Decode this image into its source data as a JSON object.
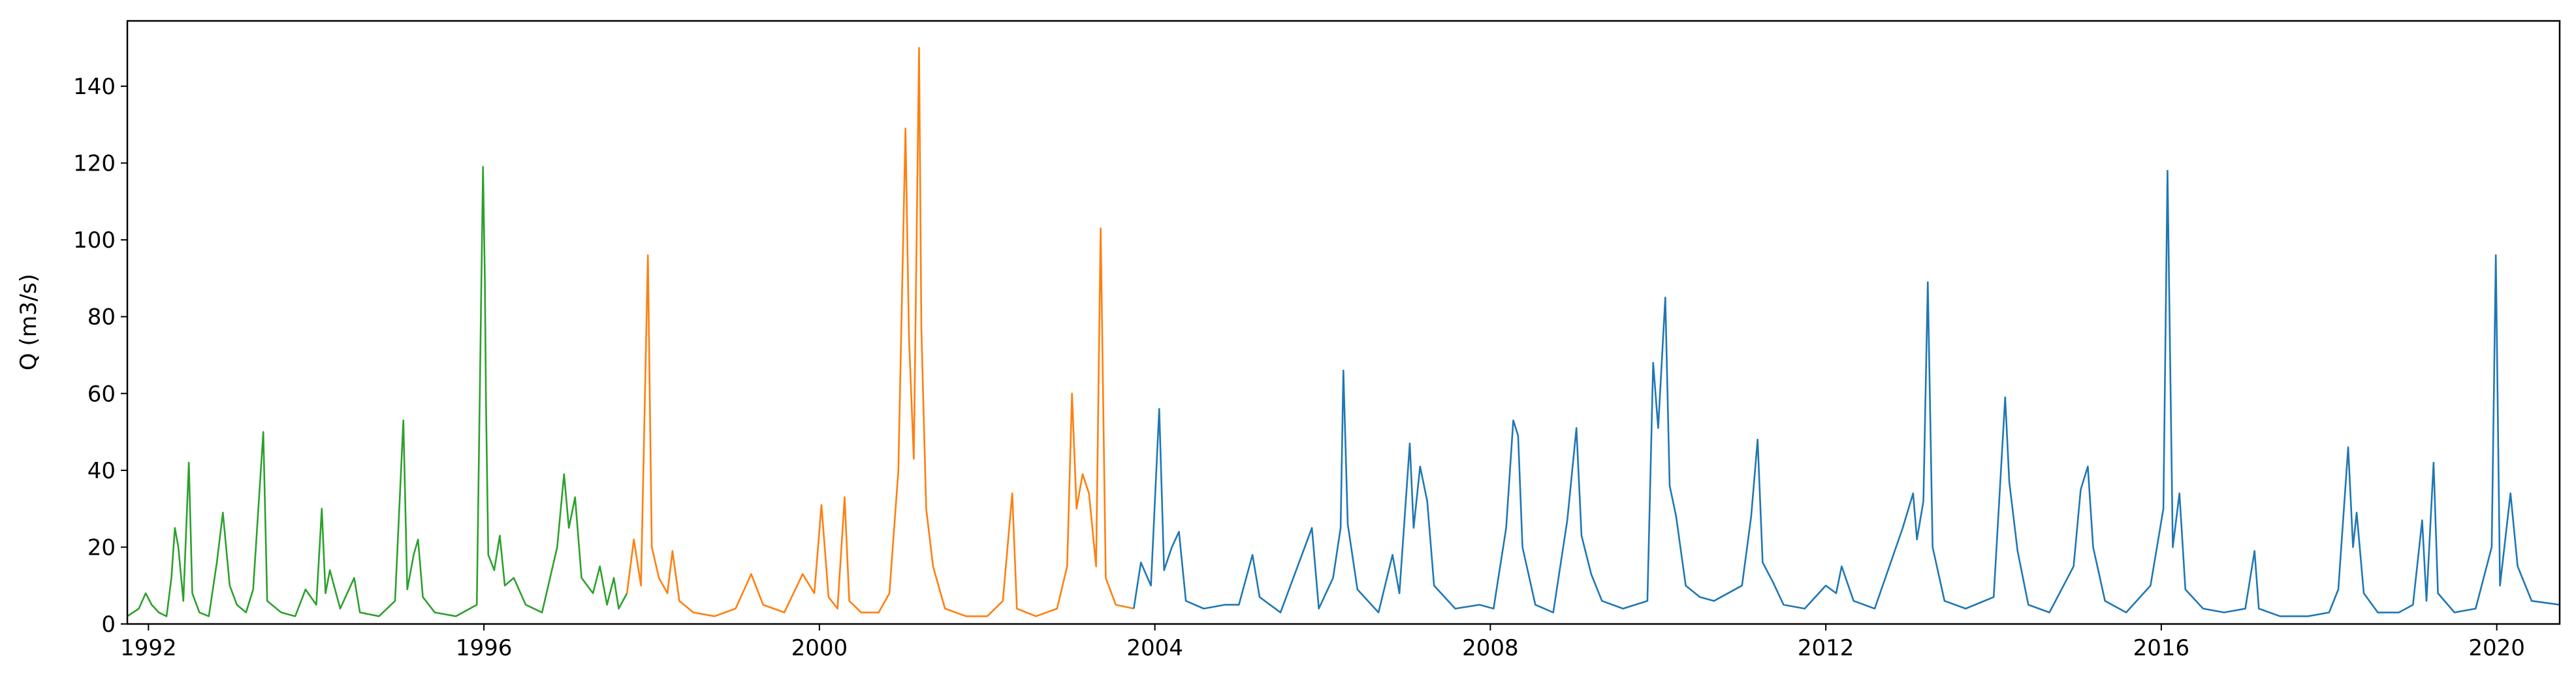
{
  "chart_data": {
    "type": "line",
    "title": "",
    "xlabel": "",
    "ylabel": "Q (m3/s)",
    "xlim": [
      "1991-10-01",
      "2020-10-01"
    ],
    "ylim": [
      0,
      157
    ],
    "x_ticks": [
      1992,
      1996,
      2000,
      2004,
      2008,
      2012,
      2016,
      2020
    ],
    "y_ticks": [
      0,
      20,
      40,
      60,
      80,
      100,
      120,
      140
    ],
    "grid": false,
    "legend": "none",
    "series": [
      {
        "color": "#2ca02c",
        "points": [
          [
            "1991-10-01",
            2
          ],
          [
            "1991-11-20",
            4
          ],
          [
            "1991-12-20",
            8
          ],
          [
            "1992-01-15",
            5
          ],
          [
            "1992-02-15",
            3
          ],
          [
            "1992-03-20",
            2
          ],
          [
            "1992-04-10",
            12
          ],
          [
            "1992-04-25",
            25
          ],
          [
            "1992-05-10",
            20
          ],
          [
            "1992-06-01",
            6
          ],
          [
            "1992-06-25",
            42
          ],
          [
            "1992-07-10",
            8
          ],
          [
            "1992-08-10",
            3
          ],
          [
            "1992-09-20",
            2
          ],
          [
            "1992-10-25",
            16
          ],
          [
            "1992-11-20",
            29
          ],
          [
            "1992-12-20",
            10
          ],
          [
            "1993-01-20",
            5
          ],
          [
            "1993-03-01",
            3
          ],
          [
            "1993-04-01",
            9
          ],
          [
            "1993-05-15",
            50
          ],
          [
            "1993-06-01",
            6
          ],
          [
            "1993-08-01",
            3
          ],
          [
            "1993-10-01",
            2
          ],
          [
            "1993-11-15",
            9
          ],
          [
            "1994-01-01",
            5
          ],
          [
            "1994-01-25",
            30
          ],
          [
            "1994-02-10",
            8
          ],
          [
            "1994-03-01",
            14
          ],
          [
            "1994-04-15",
            4
          ],
          [
            "1994-06-15",
            12
          ],
          [
            "1994-07-10",
            3
          ],
          [
            "1994-10-01",
            2
          ],
          [
            "1994-12-10",
            6
          ],
          [
            "1995-01-15",
            53
          ],
          [
            "1995-02-01",
            9
          ],
          [
            "1995-03-01",
            18
          ],
          [
            "1995-03-20",
            22
          ],
          [
            "1995-04-10",
            7
          ],
          [
            "1995-06-01",
            3
          ],
          [
            "1995-09-01",
            2
          ],
          [
            "1995-12-01",
            5
          ],
          [
            "1995-12-28",
            119
          ],
          [
            "1996-01-05",
            90
          ],
          [
            "1996-01-10",
            57
          ],
          [
            "1996-01-20",
            18
          ],
          [
            "1996-02-15",
            14
          ],
          [
            "1996-03-10",
            23
          ],
          [
            "1996-04-01",
            10
          ],
          [
            "1996-05-10",
            12
          ],
          [
            "1996-07-01",
            5
          ],
          [
            "1996-09-10",
            3
          ],
          [
            "1996-11-15",
            20
          ],
          [
            "1996-12-15",
            39
          ],
          [
            "1997-01-05",
            25
          ],
          [
            "1997-02-01",
            33
          ],
          [
            "1997-03-01",
            12
          ],
          [
            "1997-04-20",
            8
          ],
          [
            "1997-05-20",
            15
          ],
          [
            "1997-06-20",
            5
          ],
          [
            "1997-07-20",
            12
          ],
          [
            "1997-08-10",
            4
          ],
          [
            "1997-09-15",
            8
          ]
        ]
      },
      {
        "color": "#ff7f0e",
        "points": [
          [
            "1997-09-15",
            8
          ],
          [
            "1997-10-15",
            22
          ],
          [
            "1997-11-15",
            10
          ],
          [
            "1997-12-15",
            96
          ],
          [
            "1998-01-01",
            20
          ],
          [
            "1998-02-01",
            12
          ],
          [
            "1998-03-10",
            8
          ],
          [
            "1998-04-01",
            19
          ],
          [
            "1998-05-01",
            6
          ],
          [
            "1998-07-01",
            3
          ],
          [
            "1998-10-01",
            2
          ],
          [
            "1999-01-01",
            4
          ],
          [
            "1999-03-10",
            13
          ],
          [
            "1999-05-01",
            5
          ],
          [
            "1999-08-01",
            3
          ],
          [
            "1999-10-20",
            13
          ],
          [
            "1999-12-10",
            8
          ],
          [
            "2000-01-10",
            31
          ],
          [
            "2000-02-10",
            7
          ],
          [
            "2000-03-20",
            4
          ],
          [
            "2000-04-20",
            33
          ],
          [
            "2000-05-10",
            6
          ],
          [
            "2000-07-01",
            3
          ],
          [
            "2000-09-15",
            3
          ],
          [
            "2000-11-01",
            8
          ],
          [
            "2000-12-10",
            40
          ],
          [
            "2001-01-10",
            129
          ],
          [
            "2001-01-25",
            75
          ],
          [
            "2001-02-15",
            43
          ],
          [
            "2001-03-10",
            150
          ],
          [
            "2001-03-20",
            77
          ],
          [
            "2001-04-10",
            30
          ],
          [
            "2001-05-10",
            15
          ],
          [
            "2001-07-01",
            4
          ],
          [
            "2001-10-01",
            2
          ],
          [
            "2002-01-01",
            2
          ],
          [
            "2002-03-10",
            6
          ],
          [
            "2002-04-20",
            34
          ],
          [
            "2002-05-10",
            4
          ],
          [
            "2002-08-01",
            2
          ],
          [
            "2002-11-01",
            4
          ],
          [
            "2002-12-15",
            15
          ],
          [
            "2003-01-05",
            60
          ],
          [
            "2003-01-25",
            30
          ],
          [
            "2003-02-20",
            39
          ],
          [
            "2003-03-20",
            34
          ],
          [
            "2003-04-20",
            15
          ],
          [
            "2003-05-10",
            103
          ],
          [
            "2003-06-01",
            12
          ],
          [
            "2003-07-15",
            5
          ],
          [
            "2003-10-01",
            4
          ]
        ]
      },
      {
        "color": "#1f77b4",
        "points": [
          [
            "2003-10-01",
            4
          ],
          [
            "2003-11-01",
            16
          ],
          [
            "2003-12-15",
            10
          ],
          [
            "2004-01-20",
            56
          ],
          [
            "2004-02-10",
            14
          ],
          [
            "2004-03-15",
            20
          ],
          [
            "2004-04-15",
            24
          ],
          [
            "2004-05-15",
            6
          ],
          [
            "2004-08-01",
            4
          ],
          [
            "2004-11-01",
            5
          ],
          [
            "2005-01-01",
            5
          ],
          [
            "2005-03-01",
            18
          ],
          [
            "2005-04-01",
            7
          ],
          [
            "2005-07-01",
            3
          ],
          [
            "2005-11-15",
            25
          ],
          [
            "2005-12-15",
            4
          ],
          [
            "2006-02-15",
            12
          ],
          [
            "2006-03-20",
            25
          ],
          [
            "2006-04-01",
            66
          ],
          [
            "2006-04-20",
            26
          ],
          [
            "2006-06-01",
            9
          ],
          [
            "2006-09-01",
            3
          ],
          [
            "2006-11-01",
            18
          ],
          [
            "2006-12-01",
            8
          ],
          [
            "2007-01-15",
            47
          ],
          [
            "2007-02-01",
            25
          ],
          [
            "2007-03-01",
            41
          ],
          [
            "2007-04-01",
            32
          ],
          [
            "2007-05-01",
            10
          ],
          [
            "2007-08-01",
            4
          ],
          [
            "2007-11-15",
            5
          ],
          [
            "2008-01-15",
            4
          ],
          [
            "2008-03-10",
            25
          ],
          [
            "2008-04-10",
            53
          ],
          [
            "2008-05-01",
            49
          ],
          [
            "2008-05-20",
            20
          ],
          [
            "2008-07-15",
            5
          ],
          [
            "2008-10-01",
            3
          ],
          [
            "2008-12-01",
            27
          ],
          [
            "2009-01-10",
            51
          ],
          [
            "2009-02-01",
            23
          ],
          [
            "2009-03-15",
            13
          ],
          [
            "2009-05-01",
            6
          ],
          [
            "2009-08-01",
            4
          ],
          [
            "2009-11-15",
            6
          ],
          [
            "2009-12-10",
            68
          ],
          [
            "2010-01-01",
            51
          ],
          [
            "2010-02-01",
            85
          ],
          [
            "2010-02-20",
            36
          ],
          [
            "2010-03-20",
            28
          ],
          [
            "2010-05-01",
            10
          ],
          [
            "2010-07-01",
            7
          ],
          [
            "2010-09-01",
            6
          ],
          [
            "2011-01-01",
            10
          ],
          [
            "2011-02-10",
            28
          ],
          [
            "2011-03-10",
            48
          ],
          [
            "2011-04-01",
            16
          ],
          [
            "2011-05-15",
            11
          ],
          [
            "2011-07-01",
            5
          ],
          [
            "2011-10-01",
            4
          ],
          [
            "2012-01-01",
            10
          ],
          [
            "2012-02-15",
            8
          ],
          [
            "2012-03-10",
            15
          ],
          [
            "2012-05-01",
            6
          ],
          [
            "2012-08-01",
            4
          ],
          [
            "2012-12-01",
            25
          ],
          [
            "2013-01-15",
            34
          ],
          [
            "2013-02-01",
            22
          ],
          [
            "2013-03-01",
            32
          ],
          [
            "2013-03-20",
            89
          ],
          [
            "2013-04-10",
            20
          ],
          [
            "2013-06-01",
            6
          ],
          [
            "2013-09-01",
            4
          ],
          [
            "2014-01-01",
            7
          ],
          [
            "2014-02-20",
            59
          ],
          [
            "2014-03-10",
            37
          ],
          [
            "2014-04-15",
            19
          ],
          [
            "2014-06-01",
            5
          ],
          [
            "2014-09-01",
            3
          ],
          [
            "2014-12-15",
            15
          ],
          [
            "2015-01-15",
            35
          ],
          [
            "2015-02-15",
            41
          ],
          [
            "2015-03-10",
            20
          ],
          [
            "2015-05-01",
            6
          ],
          [
            "2015-08-01",
            3
          ],
          [
            "2015-11-15",
            10
          ],
          [
            "2016-01-10",
            30
          ],
          [
            "2016-01-28",
            118
          ],
          [
            "2016-02-20",
            20
          ],
          [
            "2016-03-20",
            34
          ],
          [
            "2016-04-15",
            9
          ],
          [
            "2016-07-01",
            4
          ],
          [
            "2016-10-01",
            3
          ],
          [
            "2017-01-01",
            4
          ],
          [
            "2017-02-10",
            19
          ],
          [
            "2017-03-01",
            4
          ],
          [
            "2017-06-01",
            2
          ],
          [
            "2017-10-01",
            2
          ],
          [
            "2018-01-01",
            3
          ],
          [
            "2018-02-10",
            9
          ],
          [
            "2018-03-25",
            46
          ],
          [
            "2018-04-15",
            20
          ],
          [
            "2018-05-01",
            29
          ],
          [
            "2018-06-01",
            8
          ],
          [
            "2018-08-01",
            3
          ],
          [
            "2018-11-01",
            3
          ],
          [
            "2019-01-01",
            5
          ],
          [
            "2019-02-10",
            27
          ],
          [
            "2019-03-01",
            6
          ],
          [
            "2019-04-01",
            42
          ],
          [
            "2019-04-20",
            8
          ],
          [
            "2019-07-01",
            3
          ],
          [
            "2019-10-01",
            4
          ],
          [
            "2019-12-10",
            20
          ],
          [
            "2019-12-28",
            96
          ],
          [
            "2020-01-15",
            10
          ],
          [
            "2020-03-01",
            34
          ],
          [
            "2020-04-01",
            15
          ],
          [
            "2020-06-01",
            6
          ],
          [
            "2020-10-01",
            5
          ]
        ]
      }
    ]
  }
}
